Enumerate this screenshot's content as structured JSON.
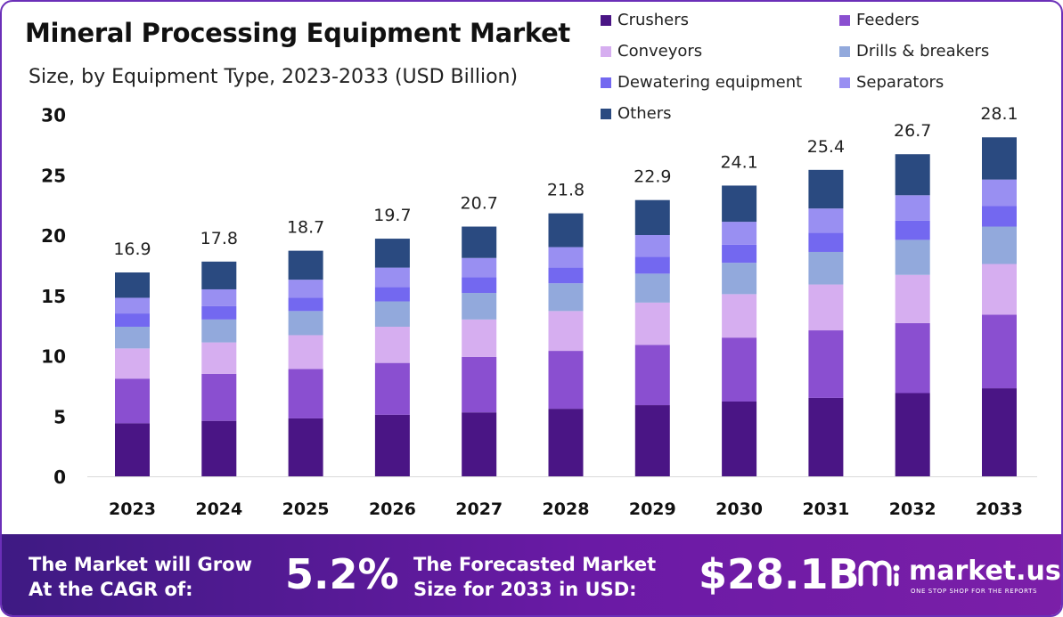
{
  "header": {
    "title": "Mineral Processing Equipment Market",
    "subtitle": "Size, by Equipment Type, 2023-2033 (USD Billion)"
  },
  "chart_data": {
    "type": "bar",
    "stacked": true,
    "categories": [
      "2023",
      "2024",
      "2025",
      "2026",
      "2027",
      "2028",
      "2029",
      "2030",
      "2031",
      "2032",
      "2033"
    ],
    "totals": [
      16.9,
      17.8,
      18.7,
      19.7,
      20.7,
      21.8,
      22.9,
      24.1,
      25.4,
      26.7,
      28.1
    ],
    "total_labels": [
      "16.9",
      "17.8",
      "18.7",
      "19.7",
      "20.7",
      "21.8",
      "22.9",
      "24.1",
      "25.4",
      "26.7",
      "28.1"
    ],
    "ylim": [
      0,
      30
    ],
    "yticks": [
      0,
      5,
      10,
      15,
      20,
      25,
      30
    ],
    "grid": false,
    "legend_position": "top-right",
    "series": [
      {
        "name": "Crushers",
        "color": "#4a1585",
        "values": [
          4.4,
          4.6,
          4.8,
          5.1,
          5.3,
          5.6,
          5.9,
          6.2,
          6.5,
          6.9,
          7.3
        ]
      },
      {
        "name": "Feeders",
        "color": "#8a4fd0",
        "values": [
          3.7,
          3.9,
          4.1,
          4.3,
          4.6,
          4.8,
          5.0,
          5.3,
          5.6,
          5.8,
          6.1
        ]
      },
      {
        "name": "Conveyors",
        "color": "#d6aef0",
        "values": [
          2.5,
          2.6,
          2.8,
          3.0,
          3.1,
          3.3,
          3.5,
          3.6,
          3.8,
          4.0,
          4.2
        ]
      },
      {
        "name": "Drills & breakers",
        "color": "#92a9dc",
        "values": [
          1.8,
          1.9,
          2.0,
          2.1,
          2.2,
          2.3,
          2.4,
          2.6,
          2.7,
          2.9,
          3.1
        ]
      },
      {
        "name": "Dewatering equipment",
        "color": "#7368f0",
        "values": [
          1.1,
          1.1,
          1.1,
          1.2,
          1.3,
          1.3,
          1.4,
          1.5,
          1.6,
          1.6,
          1.7
        ]
      },
      {
        "name": "Separators",
        "color": "#998ff2",
        "values": [
          1.3,
          1.4,
          1.5,
          1.6,
          1.6,
          1.7,
          1.8,
          1.9,
          2.0,
          2.1,
          2.2
        ]
      },
      {
        "name": "Others",
        "color": "#2a4a80",
        "values": [
          2.1,
          2.3,
          2.4,
          2.4,
          2.6,
          2.8,
          2.9,
          3.0,
          3.2,
          3.4,
          3.5
        ]
      }
    ]
  },
  "footer": {
    "cagr_label_line1": "The Market will Grow",
    "cagr_label_line2": "At the CAGR of:",
    "cagr_value": "5.2%",
    "forecast_label_line1": "The Forecasted Market",
    "forecast_label_line2": "Size for 2033 in USD:",
    "forecast_value": "$28.1B",
    "brand_name": "market.us",
    "brand_tagline": "ONE STOP SHOP FOR THE REPORTS"
  }
}
